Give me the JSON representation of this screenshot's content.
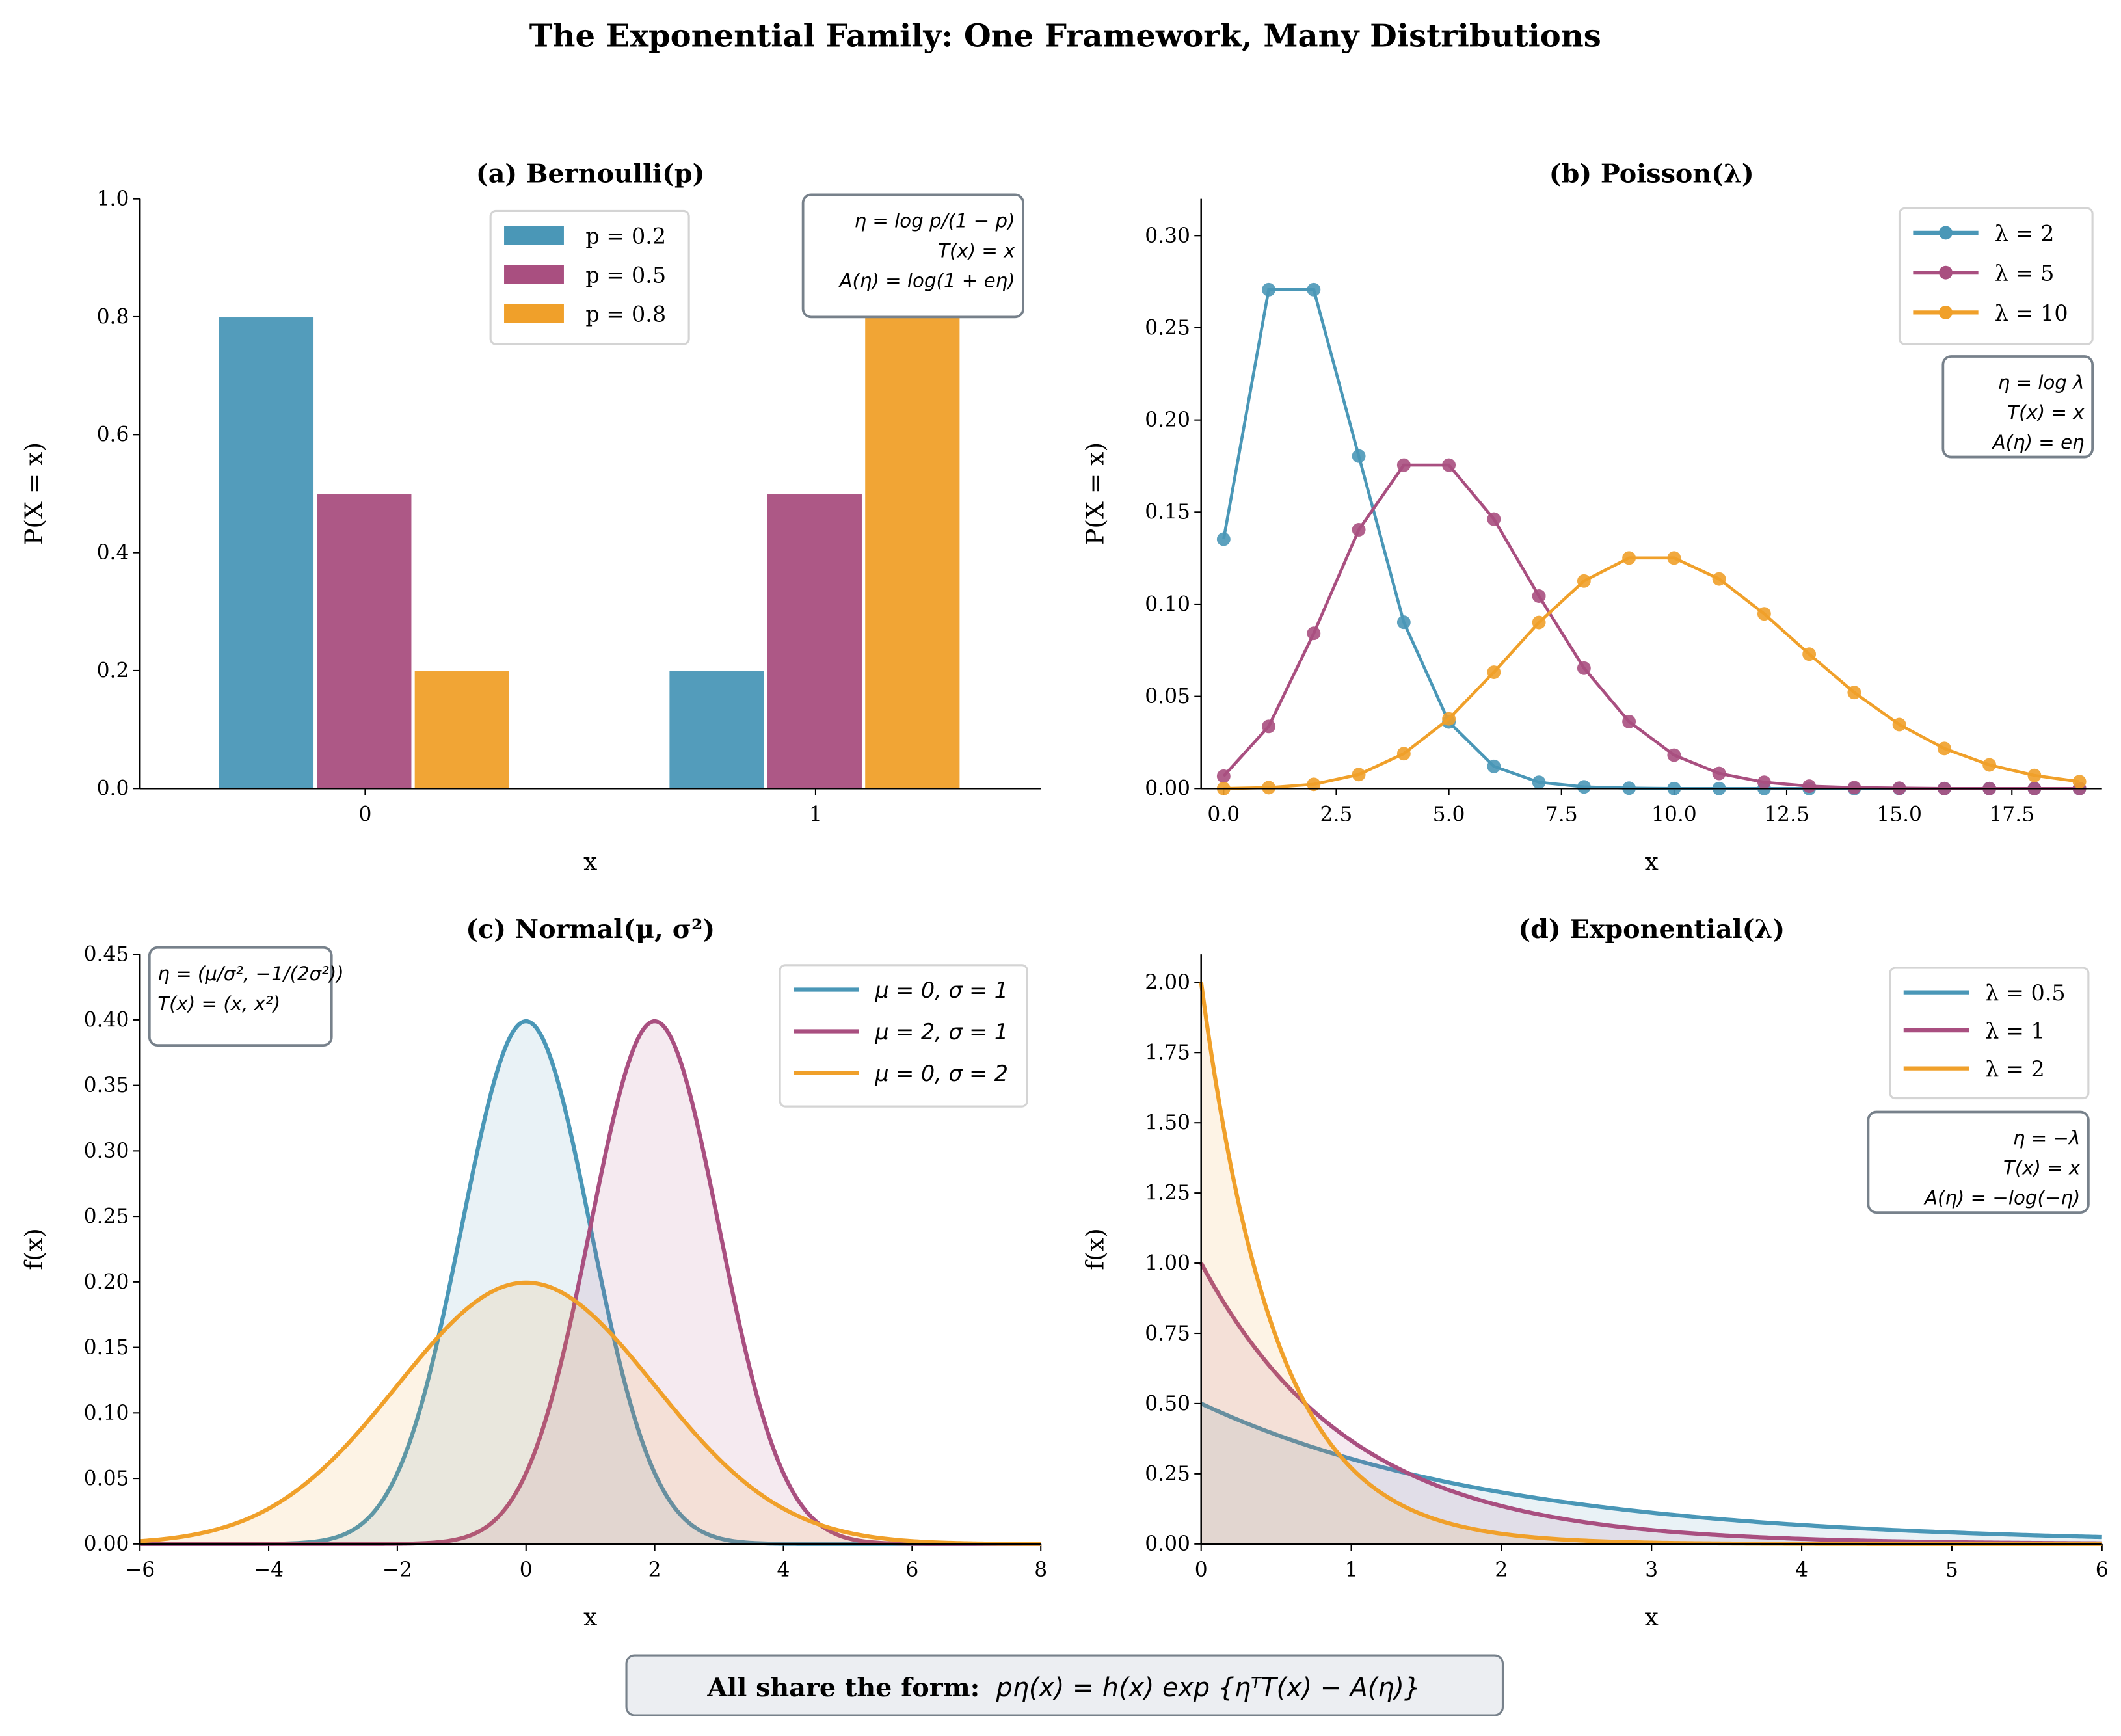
{
  "title": "The Exponential Family: One Framework, Many Distributions",
  "footer": {
    "bold": "All share the form:",
    "formula": "pη(x) = h(x) exp {ηᵀT(x) − A(η)}"
  },
  "colors": {
    "blue": "#4a97b7",
    "magenta": "#a94f80",
    "orange": "#f0a02a"
  },
  "chart_data": [
    {
      "type": "bar",
      "title": "(a) Bernoulli(p)",
      "xlabel": "x",
      "ylabel": "P(X = x)",
      "categories": [
        "0",
        "1"
      ],
      "ylim": [
        0,
        1.0
      ],
      "yticks": [
        "0.0",
        "0.2",
        "0.4",
        "0.6",
        "0.8",
        "1.0"
      ],
      "legend_placement": "top-center",
      "series": [
        {
          "name": "p = 0.2",
          "values": [
            0.8,
            0.2
          ],
          "color": "#4a97b7"
        },
        {
          "name": "p = 0.5",
          "values": [
            0.5,
            0.5
          ],
          "color": "#a94f80"
        },
        {
          "name": "p = 0.8",
          "values": [
            0.2,
            0.8
          ],
          "color": "#f0a02a"
        }
      ],
      "annotation": [
        "η = log p/(1 − p)",
        "T(x) = x",
        "A(η) = log(1 + eη)"
      ]
    },
    {
      "type": "line",
      "title": "(b) Poisson(λ)",
      "xlabel": "x",
      "ylabel": "P(X = x)",
      "xlim": [
        -0.5,
        19.5
      ],
      "ylim": [
        0,
        0.32
      ],
      "xticks": [
        "0.0",
        "2.5",
        "5.0",
        "7.5",
        "10.0",
        "12.5",
        "15.0",
        "17.5"
      ],
      "yticks": [
        "0.00",
        "0.05",
        "0.10",
        "0.15",
        "0.20",
        "0.25",
        "0.30"
      ],
      "legend_placement": "top-right",
      "x": [
        0,
        1,
        2,
        3,
        4,
        5,
        6,
        7,
        8,
        9,
        10,
        11,
        12,
        13,
        14,
        15,
        16,
        17,
        18,
        19
      ],
      "series": [
        {
          "name": "λ = 2",
          "color": "#4a97b7",
          "values": [
            0.1353,
            0.2707,
            0.2707,
            0.1804,
            0.0902,
            0.0361,
            0.012,
            0.0034,
            0.0009,
            0.0002,
            0.0,
            0.0,
            0.0,
            0.0,
            0.0,
            0.0,
            0.0,
            0.0,
            0.0,
            0.0
          ]
        },
        {
          "name": "λ = 5",
          "color": "#a94f80",
          "values": [
            0.0067,
            0.0337,
            0.0842,
            0.1404,
            0.1755,
            0.1755,
            0.1462,
            0.1044,
            0.0653,
            0.0363,
            0.0181,
            0.0082,
            0.0034,
            0.0013,
            0.0005,
            0.0002,
            0.0,
            0.0,
            0.0,
            0.0
          ]
        },
        {
          "name": "λ = 10",
          "color": "#f0a02a",
          "values": [
            0.0,
            0.0005,
            0.0023,
            0.0076,
            0.0189,
            0.0378,
            0.0631,
            0.0901,
            0.1126,
            0.1251,
            0.1251,
            0.1137,
            0.0948,
            0.0729,
            0.0521,
            0.0347,
            0.0217,
            0.0128,
            0.0071,
            0.0037
          ]
        }
      ],
      "annotation": [
        "η = log λ",
        "T(x) = x",
        "A(η) = eη"
      ]
    },
    {
      "type": "area",
      "title": "(c) Normal(μ, σ²)",
      "xlabel": "x",
      "ylabel": "f(x)",
      "xlim": [
        -6,
        8
      ],
      "ylim": [
        0,
        0.45
      ],
      "xticks": [
        "−6",
        "−4",
        "−2",
        "0",
        "2",
        "4",
        "6",
        "8"
      ],
      "yticks": [
        "0.00",
        "0.05",
        "0.10",
        "0.15",
        "0.20",
        "0.25",
        "0.30",
        "0.35",
        "0.40",
        "0.45"
      ],
      "legend_placement": "top-right",
      "series": [
        {
          "name": "μ = 0, σ = 1",
          "mu": 0,
          "sigma": 1,
          "color": "#4a97b7"
        },
        {
          "name": "μ = 2, σ = 1",
          "mu": 2,
          "sigma": 1,
          "color": "#a94f80"
        },
        {
          "name": "μ = 0, σ = 2",
          "mu": 0,
          "sigma": 2,
          "color": "#f0a02a"
        }
      ],
      "annotation": [
        "η = (μ/σ², −1/(2σ²))",
        "T(x) = (x, x²)"
      ]
    },
    {
      "type": "area",
      "title": "(d) Exponential(λ)",
      "xlabel": "x",
      "ylabel": "f(x)",
      "xlim": [
        0,
        6
      ],
      "ylim": [
        0,
        2.1
      ],
      "xticks": [
        "0",
        "1",
        "2",
        "3",
        "4",
        "5",
        "6"
      ],
      "yticks": [
        "0.00",
        "0.25",
        "0.50",
        "0.75",
        "1.00",
        "1.25",
        "1.50",
        "1.75",
        "2.00"
      ],
      "legend_placement": "top-right",
      "series": [
        {
          "name": "λ = 0.5",
          "lambda": 0.5,
          "color": "#4a97b7"
        },
        {
          "name": "λ = 1",
          "lambda": 1,
          "color": "#a94f80"
        },
        {
          "name": "λ = 2",
          "lambda": 2,
          "color": "#f0a02a"
        }
      ],
      "annotation": [
        "η = −λ",
        "T(x) = x",
        "A(η) = −log(−η)"
      ]
    }
  ]
}
